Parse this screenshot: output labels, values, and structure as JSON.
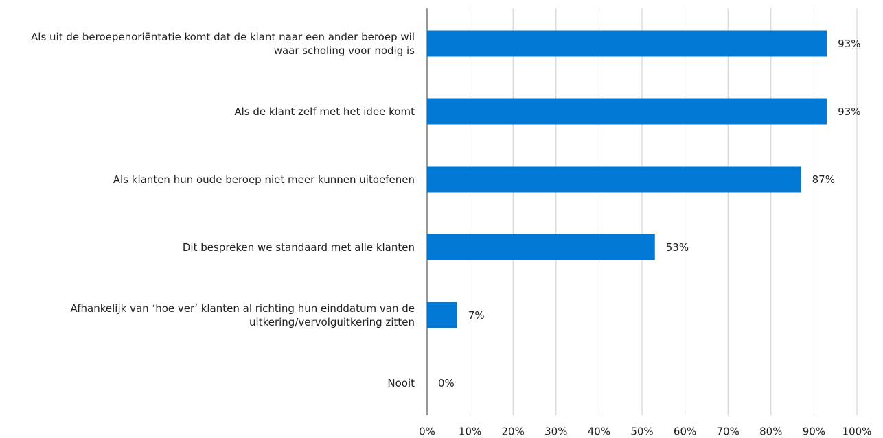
{
  "chart_data": {
    "type": "bar",
    "orientation": "horizontal",
    "categories": [
      "Als uit de beroepenoriëntatie komt dat de klant naar een ander beroep wil waar scholing voor nodig is",
      "Als de klant zelf met het idee komt",
      "Als klanten hun oude beroep niet meer kunnen uitoefenen",
      "Dit bespreken we standaard met alle klanten",
      "Afhankelijk van ‘hoe ver’ klanten al richting hun einddatum van de uitkering/vervolguitkering zitten",
      "Nooit"
    ],
    "values": [
      93,
      93,
      87,
      53,
      7,
      0
    ],
    "value_labels": [
      "93%",
      "93%",
      "87%",
      "53%",
      "7%",
      "0%"
    ],
    "color": "#0078d4",
    "xlim": [
      0,
      100
    ],
    "xticks": [
      {
        "value": 0,
        "label": "0%"
      },
      {
        "value": 10,
        "label": "10%"
      },
      {
        "value": 20,
        "label": "20%"
      },
      {
        "value": 30,
        "label": "30%"
      },
      {
        "value": 40,
        "label": "40%"
      },
      {
        "value": 50,
        "label": "50%"
      },
      {
        "value": 60,
        "label": "60%"
      },
      {
        "value": 70,
        "label": "70%"
      },
      {
        "value": 80,
        "label": "80%"
      },
      {
        "value": 90,
        "label": "90%"
      },
      {
        "value": 100,
        "label": "100%"
      }
    ],
    "grid": true
  }
}
